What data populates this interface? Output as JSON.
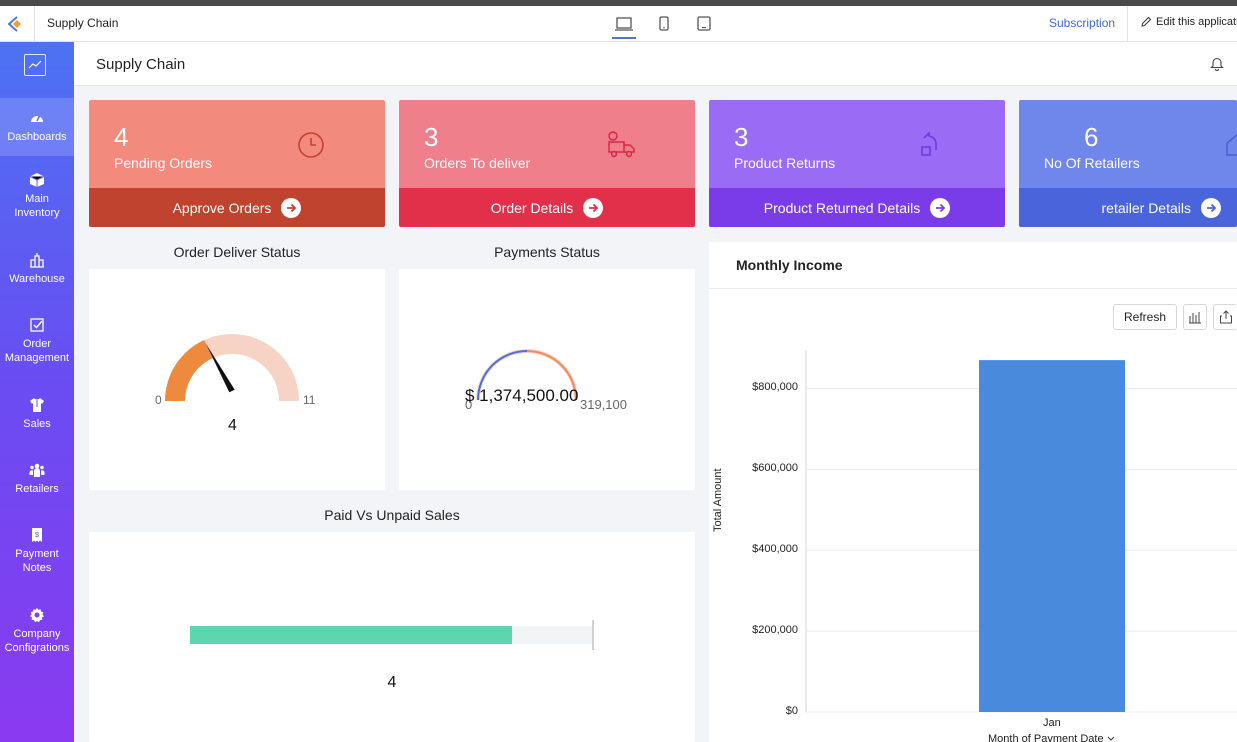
{
  "topbar": {
    "app_name": "Supply Chain",
    "subscription": "Subscription",
    "edit": "Edit this application"
  },
  "sidebar": {
    "items": [
      {
        "label": "Dashboards",
        "icon": "speedometer-icon"
      },
      {
        "label": "Main Inventory",
        "icon": "box-icon"
      },
      {
        "label": "Warehouse",
        "icon": "warehouse-icon"
      },
      {
        "label": "Order Management",
        "icon": "checkbox-icon"
      },
      {
        "label": "Sales",
        "icon": "shirt-icon"
      },
      {
        "label": "Retailers",
        "icon": "people-icon"
      },
      {
        "label": "Payment Notes",
        "icon": "receipt-icon"
      },
      {
        "label": "Company Configrations",
        "icon": "gear-icon"
      }
    ]
  },
  "header": {
    "title": "Supply Chain"
  },
  "cards": [
    {
      "value": "4",
      "label": "Pending Orders",
      "action": "Approve Orders",
      "top_color": "#f28a7e",
      "bottom_color": "#c0432f",
      "icon": "clock-icon"
    },
    {
      "value": "3",
      "label": "Orders To deliver",
      "action": "Order Details",
      "top_color": "#ef7f8a",
      "bottom_color": "#e2304a",
      "icon": "delivery-truck-icon"
    },
    {
      "value": "3",
      "label": "Product Returns",
      "action": "Product Returned Details",
      "top_color": "#9a6bf5",
      "bottom_color": "#7a3ce8",
      "icon": "return-arrow-icon"
    },
    {
      "value": "6",
      "label": "No Of Retailers",
      "action": "retailer Details",
      "top_color": "#6f86ea",
      "bottom_color": "#4a64dc",
      "icon": "shop-icon"
    }
  ],
  "order_deliver": {
    "title": "Order Deliver Status",
    "min": "0",
    "max": "11",
    "value": "4",
    "value_num": 4,
    "max_num": 11
  },
  "payments": {
    "title": "Payments Status",
    "value": "$ 1,374,500.00",
    "min": "0",
    "max": "319,100"
  },
  "paid_unpaid": {
    "title": "Paid Vs Unpaid Sales",
    "value": "4",
    "fill_fraction": 0.8
  },
  "income": {
    "title": "Monthly Income",
    "refresh": "Refresh"
  },
  "chart_data": {
    "type": "bar",
    "categories": [
      "Jan"
    ],
    "values": [
      870000
    ],
    "title": "Monthly Income",
    "xlabel": "Month of Payment Date",
    "ylabel": "Total Amount",
    "ylim": [
      0,
      900000
    ],
    "yticks": [
      "$0",
      "$200,000",
      "$400,000",
      "$600,000",
      "$800,000"
    ],
    "ytick_values": [
      0,
      200000,
      400000,
      600000,
      800000
    ],
    "bar_color": "#4a8add",
    "grid": true
  }
}
